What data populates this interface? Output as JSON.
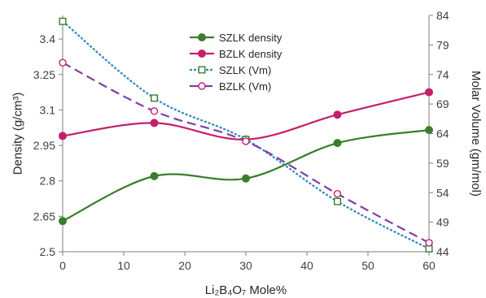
{
  "chart_data": {
    "type": "line",
    "x_axis": {
      "label": "Li₂B₄O₇ Mole%",
      "range": [
        0,
        60
      ],
      "ticks": [
        0,
        10,
        20,
        30,
        40,
        50,
        60
      ]
    },
    "y_left_axis": {
      "label": "Density (g/cm³)",
      "range": [
        2.5,
        3.5
      ],
      "ticks": [
        2.5,
        2.65,
        2.8,
        2.95,
        3.1,
        3.25,
        3.4
      ]
    },
    "y_right_axis": {
      "label": "Molar Volume (gm/mol)",
      "range": [
        44,
        84
      ],
      "ticks": [
        44,
        49,
        54,
        59,
        64,
        69,
        74,
        79,
        84
      ]
    },
    "grid": false,
    "legend_position": "top-center",
    "series": [
      {
        "name": "SZLK density",
        "axis": "left",
        "color": "#3a7d2c",
        "style": "solid",
        "marker": "filled-circle",
        "x": [
          0,
          15,
          30,
          45,
          60
        ],
        "y": [
          2.63,
          2.82,
          2.81,
          2.96,
          3.015
        ]
      },
      {
        "name": "BZLK density",
        "axis": "left",
        "color": "#c41f6a",
        "style": "solid",
        "marker": "filled-circle",
        "x": [
          0,
          15,
          30,
          45,
          60
        ],
        "y": [
          2.99,
          3.045,
          2.975,
          3.08,
          3.175
        ]
      },
      {
        "name": "SZLK (Vm)",
        "axis": "right",
        "color": "#2e86c1",
        "style": "short-dash",
        "marker": "open-square-green",
        "x": [
          0,
          15,
          30,
          45,
          60
        ],
        "y": [
          83,
          70,
          63,
          52.5,
          44.5
        ]
      },
      {
        "name": "BZLK (Vm)",
        "axis": "right",
        "color": "#7e3fa6",
        "style": "long-dash",
        "marker": "open-circle-pink",
        "x": [
          0,
          15,
          30,
          45,
          60
        ],
        "y": [
          76,
          67.8,
          62.7,
          53.8,
          45.5
        ]
      }
    ]
  }
}
